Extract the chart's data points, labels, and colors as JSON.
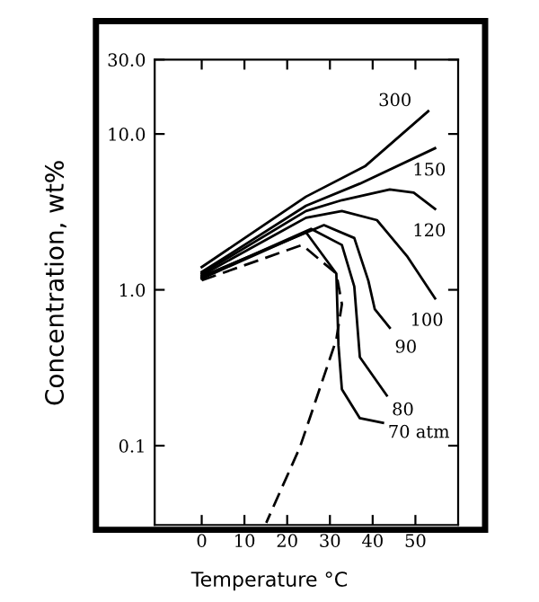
{
  "chart_data": {
    "type": "line",
    "xlabel": "Temperature °C",
    "ylabel": "Concentration, wt%",
    "log": "y",
    "xlim": [
      -11,
      60
    ],
    "ylim": [
      0.031,
      30
    ],
    "xticks": [
      0,
      10,
      20,
      30,
      40,
      50
    ],
    "yticks": [
      {
        "value": 0.1,
        "label": "0.1"
      },
      {
        "value": 1,
        "label": "1.0"
      },
      {
        "value": 10,
        "label": "10.0"
      },
      {
        "value": 30,
        "label": "30.0"
      }
    ],
    "grid": false,
    "legend": false,
    "marker": "none",
    "series": [
      {
        "name": "300",
        "color": "#000000",
        "x": [
          0,
          24.4,
          38.2,
          53
        ],
        "values": [
          1.4,
          3.96,
          6.2,
          14
        ]
      },
      {
        "name": "150",
        "color": "#000000",
        "x": [
          0,
          24.4,
          37,
          54.6
        ],
        "values": [
          1.3,
          3.46,
          4.8,
          8.1
        ]
      },
      {
        "name": "120",
        "color": "#000000",
        "x": [
          0,
          24.4,
          32.8,
          44,
          49.6,
          54.6
        ],
        "values": [
          1.27,
          3.2,
          3.76,
          4.4,
          4.2,
          3.3
        ]
      },
      {
        "name": "100",
        "color": "#000000",
        "x": [
          0,
          24.4,
          32.8,
          41,
          48,
          54.6
        ],
        "values": [
          1.24,
          2.9,
          3.2,
          2.8,
          1.65,
          0.88
        ]
      },
      {
        "name": "90",
        "color": "#000000",
        "x": [
          0,
          28.6,
          35.7,
          39,
          40.5,
          44
        ],
        "values": [
          1.22,
          2.6,
          2.15,
          1.14,
          0.75,
          0.57
        ]
      },
      {
        "name": "80",
        "color": "#000000",
        "x": [
          0,
          25.6,
          32.8,
          35.7,
          37,
          43.3
        ],
        "values": [
          1.2,
          2.46,
          1.94,
          1.05,
          0.37,
          0.21
        ]
      },
      {
        "name": "70 atm",
        "color": "#000000",
        "x": [
          0,
          24.4,
          31.5,
          32,
          32.8,
          37,
          42.4
        ],
        "values": [
          1.18,
          2.34,
          1.27,
          0.44,
          0.23,
          0.15,
          0.14
        ]
      },
      {
        "color": "#000000",
        "line_style": "dashed",
        "x": [
          0,
          23.5,
          31.5,
          32.8,
          31.5,
          23,
          15.1
        ],
        "values": [
          1.15,
          1.94,
          1.27,
          0.81,
          0.48,
          0.098,
          0.032
        ]
      }
    ]
  }
}
